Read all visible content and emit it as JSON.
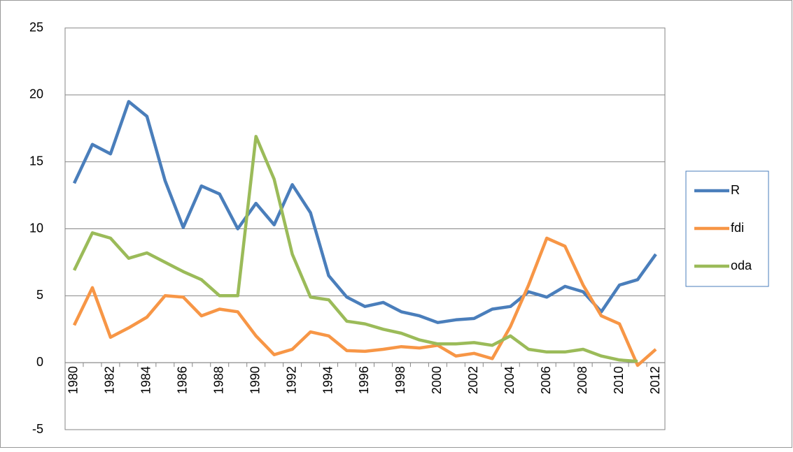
{
  "chart_data": {
    "type": "line",
    "categories": [
      "1980",
      null,
      "1982",
      null,
      "1984",
      null,
      "1986",
      null,
      "1988",
      null,
      "1990",
      null,
      "1992",
      null,
      "1994",
      null,
      "1996",
      null,
      "1998",
      null,
      "2000",
      null,
      "2002",
      null,
      "2004",
      null,
      "2006",
      null,
      "2008",
      null,
      "2010",
      null,
      "2012"
    ],
    "series": [
      {
        "name": "R",
        "color": "#4a7ebb",
        "values": [
          13.4,
          16.3,
          15.6,
          19.5,
          18.4,
          13.6,
          10.1,
          13.2,
          12.6,
          10.0,
          11.9,
          10.3,
          13.3,
          11.2,
          6.5,
          4.9,
          4.2,
          4.5,
          3.8,
          3.5,
          3.0,
          3.2,
          3.3,
          4.0,
          4.2,
          5.3,
          4.9,
          5.7,
          5.3,
          3.8,
          5.8,
          6.2,
          8.1
        ]
      },
      {
        "name": "fdi",
        "color": "#f79646",
        "values": [
          2.8,
          5.6,
          1.9,
          2.6,
          3.4,
          5.0,
          4.9,
          3.5,
          4.0,
          3.8,
          2.0,
          0.6,
          1.0,
          2.3,
          2.0,
          0.9,
          0.85,
          1.0,
          1.2,
          1.1,
          1.3,
          0.5,
          0.7,
          0.3,
          2.7,
          5.8,
          9.3,
          8.7,
          5.8,
          3.5,
          2.9,
          -0.2,
          1.0
        ]
      },
      {
        "name": "oda",
        "color": "#9bbb59",
        "values": [
          6.9,
          9.7,
          9.3,
          7.8,
          8.2,
          7.5,
          6.8,
          6.2,
          5.0,
          5.0,
          16.9,
          13.7,
          8.1,
          4.9,
          4.7,
          3.1,
          2.9,
          2.5,
          2.2,
          1.7,
          1.4,
          1.4,
          1.5,
          1.3,
          2.0,
          1.0,
          0.8,
          0.8,
          1.0,
          0.5,
          0.2,
          0.1,
          null
        ]
      }
    ],
    "ylim": [
      -5,
      25
    ],
    "yticks": [
      -5,
      0,
      5,
      10,
      15,
      20,
      25
    ],
    "grid": true,
    "legend": "right"
  }
}
